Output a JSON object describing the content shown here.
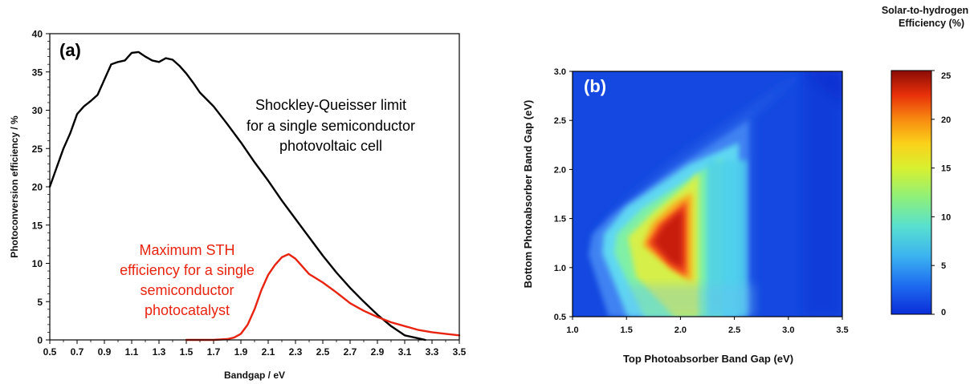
{
  "chart_data": [
    {
      "type": "line",
      "panel_label": "(a)",
      "xlabel": "Bandgap / eV",
      "ylabel": "Photoconversion efficiency / %",
      "xlim": [
        0.5,
        3.5
      ],
      "ylim": [
        0,
        40
      ],
      "xticks": [
        "0.5",
        "0.7",
        "0.9",
        "1.1",
        "1.3",
        "1.5",
        "1.7",
        "1.9",
        "2.1",
        "2.3",
        "2.5",
        "2.7",
        "2.9",
        "3.1",
        "3.3",
        "3.5"
      ],
      "yticks": [
        "0",
        "5",
        "10",
        "15",
        "20",
        "25",
        "30",
        "35",
        "40"
      ],
      "grid": false,
      "series": [
        {
          "color": "#000000",
          "x": [
            0.5,
            0.55,
            0.6,
            0.65,
            0.7,
            0.75,
            0.8,
            0.85,
            0.9,
            0.95,
            1.0,
            1.05,
            1.1,
            1.15,
            1.2,
            1.25,
            1.3,
            1.35,
            1.4,
            1.45,
            1.5,
            1.55,
            1.6,
            1.7,
            1.8,
            1.9,
            2.0,
            2.1,
            2.2,
            2.3,
            2.4,
            2.5,
            2.6,
            2.7,
            2.8,
            2.9,
            3.0,
            3.1,
            3.2,
            3.25
          ],
          "y": [
            20.0,
            22.5,
            25.0,
            27.0,
            29.5,
            30.5,
            31.2,
            32.0,
            34.0,
            36.0,
            36.3,
            36.5,
            37.5,
            37.6,
            37.0,
            36.5,
            36.3,
            36.8,
            36.6,
            35.8,
            34.8,
            33.6,
            32.3,
            30.5,
            28.2,
            25.8,
            23.2,
            20.8,
            18.2,
            15.8,
            13.4,
            11.0,
            8.8,
            6.8,
            5.0,
            3.3,
            1.8,
            0.6,
            0.2,
            0.0
          ]
        },
        {
          "color": "#e8230f",
          "x": [
            1.5,
            1.6,
            1.7,
            1.8,
            1.85,
            1.9,
            1.95,
            2.0,
            2.05,
            2.1,
            2.15,
            2.2,
            2.25,
            2.3,
            2.35,
            2.4,
            2.5,
            2.6,
            2.7,
            2.8,
            2.9,
            3.0,
            3.1,
            3.2,
            3.3,
            3.4,
            3.5
          ],
          "y": [
            0.0,
            0.0,
            0.0,
            0.1,
            0.3,
            0.8,
            2.0,
            4.0,
            6.5,
            8.5,
            9.8,
            10.8,
            11.2,
            10.6,
            9.6,
            8.6,
            7.5,
            6.2,
            4.8,
            3.8,
            3.0,
            2.3,
            1.8,
            1.3,
            1.0,
            0.8,
            0.6
          ]
        }
      ],
      "annotations": {
        "black_lines": [
          "Shockley-Queisser limit",
          "for a single semiconductor",
          "photovoltaic cell"
        ],
        "red_lines": [
          "Maximum STH",
          "efficiency for a single",
          "semiconductor",
          "photocatalyst"
        ]
      }
    },
    {
      "type": "heatmap",
      "panel_label": "(b)",
      "xlabel": "Top Photoabsorber Band Gap (eV)",
      "ylabel": "Bottom Photoabsorber Band Gap (eV)",
      "xlim": [
        1.0,
        3.5
      ],
      "ylim": [
        0.5,
        3.0
      ],
      "xticks": [
        "1.0",
        "1.5",
        "2.0",
        "2.5",
        "3.0",
        "3.5"
      ],
      "yticks": [
        "0.5",
        "1.0",
        "1.5",
        "2.0",
        "2.5",
        "3.0"
      ],
      "colorbar": {
        "title_lines": [
          "Solar-to-hydrogen",
          "Efficiency  (%)"
        ],
        "range": [
          0,
          25
        ],
        "ticks": [
          "0",
          "5",
          "10",
          "15",
          "20",
          "25"
        ]
      }
    }
  ]
}
